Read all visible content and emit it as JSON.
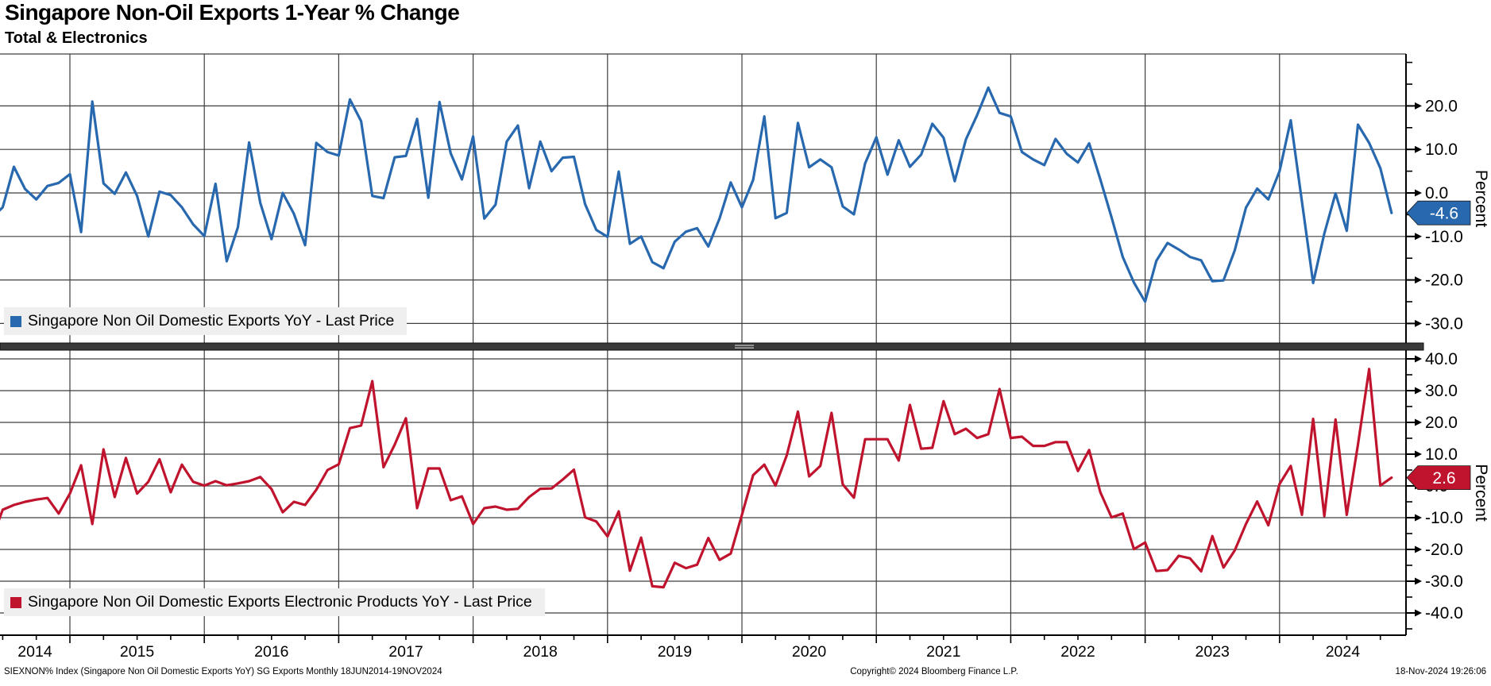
{
  "header": {
    "title": "Singapore Non-Oil Exports 1-Year % Change",
    "subtitle": "Total & Electronics"
  },
  "panels": {
    "top": {
      "legend": "Singapore Non Oil Domestic Exports YoY - Last Price",
      "last_price": "-4.6",
      "axis_title": "Percent"
    },
    "bottom": {
      "legend": "Singapore Non Oil Domestic Exports Electronic Products YoY - Last Price",
      "last_price": "2.6",
      "axis_title": "Percent"
    }
  },
  "x_axis": {
    "years": [
      "2014",
      "2015",
      "2016",
      "2017",
      "2018",
      "2019",
      "2020",
      "2021",
      "2022",
      "2023",
      "2024"
    ]
  },
  "footer": {
    "left": "SIEXNON% Index (Singapore Non Oil Domestic Exports YoY) SG Exports  Monthly 18JUN2014-19NOV2024",
    "center": "Copyright© 2024 Bloomberg Finance L.P.",
    "right": "18-Nov-2024 19:26:06"
  },
  "colors": {
    "total_line": "#2868ae",
    "electronics_line": "#c0142e",
    "grid": "#3d3d3d",
    "axis": "#000000",
    "legend_bg": "#efefef",
    "divider": "#3a3a3a",
    "tag_text": "#ffffff"
  },
  "chart_data": [
    {
      "type": "line",
      "name": "Singapore Non Oil Domestic Exports YoY",
      "panel": "top",
      "frequency": "monthly",
      "start": "2014-06",
      "end": "2024-11",
      "ylabel": "Percent",
      "ylim": [
        -34.5,
        32
      ],
      "yticks_major": [
        20,
        10,
        0,
        -10,
        -20,
        -30
      ],
      "yticks_minor": [
        30,
        25,
        15,
        5,
        -5,
        -15,
        -25
      ],
      "last": -4.6,
      "values": [
        -5.8,
        -3.3,
        6.0,
        0.9,
        -1.5,
        1.6,
        2.3,
        4.3,
        -9.0,
        21.0,
        2.2,
        -0.2,
        4.7,
        -0.7,
        -10.0,
        0.3,
        -0.5,
        -3.3,
        -7.2,
        -9.9,
        2.1,
        -15.7,
        -7.9,
        11.6,
        -2.3,
        -10.6,
        0.0,
        -4.8,
        -12.0,
        11.5,
        9.4,
        8.6,
        21.5,
        16.5,
        -0.7,
        -1.2,
        8.2,
        8.5,
        17.0,
        -1.1,
        20.9,
        9.1,
        3.1,
        13.0,
        -5.9,
        -2.7,
        11.8,
        15.5,
        1.1,
        11.8,
        5.0,
        8.1,
        8.3,
        -2.6,
        -8.5,
        -10.1,
        4.9,
        -11.7,
        -10.0,
        -15.9,
        -17.3,
        -11.2,
        -8.9,
        -8.1,
        -12.3,
        -5.9,
        2.4,
        -3.3,
        3.0,
        17.6,
        -5.8,
        -4.6,
        16.1,
        5.9,
        7.7,
        5.9,
        -3.1,
        -4.9,
        6.8,
        12.8,
        4.2,
        12.1,
        6.0,
        8.8,
        15.9,
        12.7,
        2.7,
        12.3,
        17.9,
        24.2,
        18.4,
        17.6,
        9.4,
        7.7,
        6.4,
        12.4,
        9.0,
        7.0,
        11.4,
        3.1,
        -5.6,
        -14.7,
        -20.6,
        -25.0,
        -15.6,
        -11.5,
        -13.0,
        -14.7,
        -15.5,
        -20.3,
        -20.1,
        -13.2,
        -3.4,
        1.0,
        -1.5,
        5.0,
        16.7,
        -2.0,
        -20.7,
        -9.3,
        -0.1,
        -8.7,
        15.7,
        11.5,
        5.7,
        -4.6
      ]
    },
    {
      "type": "line",
      "name": "Singapore Non Oil Domestic Exports Electronic Products YoY",
      "panel": "bottom",
      "frequency": "monthly",
      "start": "2014-06",
      "end": "2024-11",
      "ylabel": "Percent",
      "ylim": [
        -44,
        42.8
      ],
      "yticks_major": [
        40,
        30,
        20,
        10,
        0,
        -10,
        -20,
        -30,
        -40
      ],
      "yticks_minor": [
        35,
        25,
        15,
        5,
        -5,
        -15,
        -25,
        -35,
        -45
      ],
      "last": 2.6,
      "values": [
        -17.0,
        -7.5,
        -6.0,
        -5.0,
        -4.3,
        -3.8,
        -8.7,
        -2.4,
        6.5,
        -12.0,
        11.5,
        -3.5,
        8.8,
        -2.4,
        1.3,
        8.4,
        -2.0,
        6.7,
        1.3,
        0.1,
        1.5,
        0.2,
        0.8,
        1.5,
        2.8,
        -1.0,
        -8.3,
        -5.0,
        -6.0,
        -1.2,
        5.0,
        6.8,
        18.2,
        19.0,
        33.0,
        5.9,
        13.0,
        21.3,
        -7.0,
        5.5,
        5.5,
        -4.5,
        -3.3,
        -12.0,
        -7.0,
        -6.5,
        -7.5,
        -7.2,
        -3.5,
        -0.9,
        -0.8,
        2.0,
        5.1,
        -9.9,
        -11.2,
        -15.9,
        -8.0,
        -26.7,
        -16.3,
        -31.6,
        -31.9,
        -24.2,
        -25.9,
        -24.8,
        -16.4,
        -23.3,
        -21.3,
        -9.1,
        3.4,
        6.7,
        0.1,
        9.6,
        23.4,
        3.0,
        6.3,
        23.0,
        0.5,
        -3.7,
        14.7,
        14.7,
        14.7,
        8.0,
        25.5,
        11.7,
        12.0,
        26.7,
        16.3,
        18.0,
        15.1,
        16.3,
        30.5,
        15.1,
        15.5,
        12.6,
        12.6,
        13.8,
        13.8,
        4.7,
        11.3,
        -2.0,
        -9.9,
        -8.7,
        -19.9,
        -17.8,
        -26.8,
        -26.5,
        -22.0,
        -22.8,
        -26.9,
        -15.8,
        -25.7,
        -20.3,
        -12.0,
        -4.9,
        -12.4,
        0.6,
        6.3,
        -9.1,
        21.1,
        -9.5,
        20.9,
        -9.1,
        13.0,
        36.8,
        0.1,
        2.6
      ]
    }
  ]
}
